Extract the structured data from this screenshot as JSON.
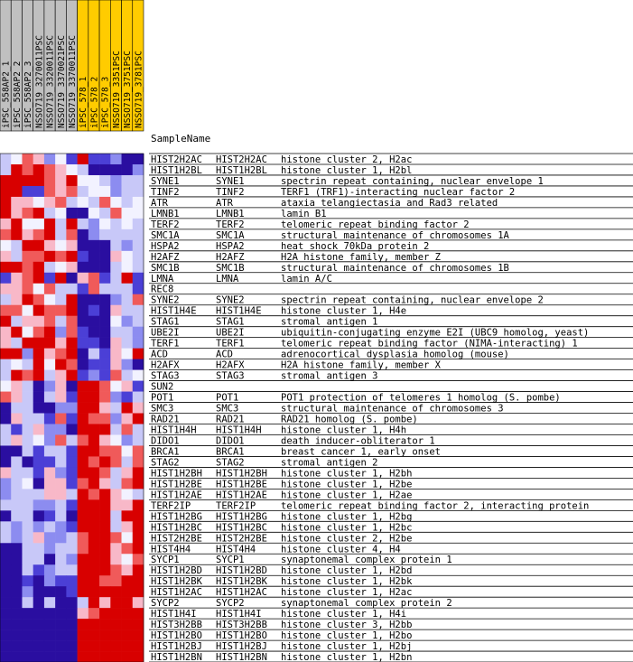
{
  "chart_data": {
    "type": "heatmap",
    "header_label": "SampleName",
    "columns": [
      {
        "name": "iPSC_558AP2_1",
        "group_color": "#c0c0c0"
      },
      {
        "name": "iPSC_558AP2_2",
        "group_color": "#c0c0c0"
      },
      {
        "name": "iPSC_558AP2_3",
        "group_color": "#c0c0c0"
      },
      {
        "name": "NSSO719_3270011PSC",
        "group_color": "#c0c0c0"
      },
      {
        "name": "NSSO719_3320011PSC",
        "group_color": "#c0c0c0"
      },
      {
        "name": "NSSO719_3370021PSC",
        "group_color": "#c0c0c0"
      },
      {
        "name": "NSSO719_3370011PSC",
        "group_color": "#c0c0c0"
      },
      {
        "name": "iPSC_578_1",
        "group_color": "#ffcc00"
      },
      {
        "name": "iPSC_578_2",
        "group_color": "#ffcc00"
      },
      {
        "name": "iPSC_578_3",
        "group_color": "#ffcc00"
      },
      {
        "name": "NSSO719_3351PSC",
        "group_color": "#ffcc00"
      },
      {
        "name": "NSSO719_3751PSC",
        "group_color": "#ffcc00"
      },
      {
        "name": "NSSO719_3781PSC",
        "group_color": "#ffcc00"
      }
    ],
    "rows": [
      {
        "symbol": "HIST2H2AC",
        "gene": "HIST2H2AC",
        "desc": "histone cluster 2, H2ac",
        "values": [
          -1,
          0,
          2,
          1,
          -2,
          0,
          -3,
          3,
          -3,
          -3,
          -2,
          -4,
          -4
        ]
      },
      {
        "symbol": "HIST1H2BL",
        "gene": "HIST1H2BL",
        "desc": "histone cluster 1, H2bl",
        "values": [
          -1,
          3,
          2,
          3,
          2,
          1,
          0,
          -1,
          -4,
          -4,
          -4,
          -4,
          -2
        ]
      },
      {
        "symbol": "SYNE1",
        "gene": "SYNE1",
        "desc": "spectrin repeat containing, nuclear envelope 1",
        "values": [
          3,
          3,
          3,
          3,
          2,
          1,
          3,
          0,
          0,
          -1,
          -2,
          -1,
          -1
        ]
      },
      {
        "symbol": "TINF2",
        "gene": "TINF2",
        "desc": "TERF1 (TRF1)-interacting nuclear factor 2",
        "values": [
          3,
          3,
          -3,
          -3,
          2,
          1,
          2,
          -1,
          0,
          0,
          -2,
          -1,
          -1
        ]
      },
      {
        "symbol": "ATR",
        "gene": "ATR",
        "desc": "ataxia telangiectasia and Rad3 related",
        "values": [
          3,
          1,
          1,
          0,
          1,
          2,
          -1,
          0,
          -1,
          2,
          0,
          -1,
          0
        ]
      },
      {
        "symbol": "LMNB1",
        "gene": "LMNB1",
        "desc": "lamin B1",
        "values": [
          3,
          1,
          2,
          3,
          -1,
          0,
          -4,
          -4,
          0,
          -1,
          2,
          0,
          0
        ]
      },
      {
        "symbol": "TERF2",
        "gene": "TERF2",
        "desc": "telomeric repeat binding factor 2",
        "values": [
          1,
          3,
          0,
          0,
          3,
          -1,
          3,
          -1,
          -2,
          0,
          -1,
          0,
          -1
        ]
      },
      {
        "symbol": "SMC1A",
        "gene": "SMC1A",
        "desc": "structural maintenance of chromosomes 1A",
        "values": [
          2,
          3,
          1,
          2,
          3,
          -1,
          2,
          -4,
          -2,
          -1,
          -1,
          -1,
          -1
        ]
      },
      {
        "symbol": "HSPA2",
        "gene": "HSPA2",
        "desc": "heat shock 70kDa protein 2",
        "values": [
          0,
          -1,
          3,
          3,
          1,
          0,
          1,
          -4,
          -4,
          -4,
          -1,
          -2,
          -1
        ]
      },
      {
        "symbol": "H2AFZ",
        "gene": "H2AFZ",
        "desc": "H2A histone family, member Z",
        "values": [
          1,
          -1,
          2,
          2,
          3,
          2,
          3,
          -3,
          -4,
          -4,
          1,
          0,
          -1
        ]
      },
      {
        "symbol": "SMC1B",
        "gene": "SMC1B",
        "desc": "structural maintenance of chromosomes 1B",
        "values": [
          3,
          3,
          2,
          3,
          -1,
          0,
          1,
          -4,
          -4,
          -4,
          -1,
          0,
          -1
        ]
      },
      {
        "symbol": "LMNA",
        "gene": "LMNA",
        "desc": "lamin A/C",
        "values": [
          -3,
          1,
          2,
          3,
          -3,
          3,
          -4,
          1,
          2,
          -3,
          -1,
          3,
          -3
        ]
      },
      {
        "symbol": "REC8",
        "gene": "",
        "desc": "",
        "values": [
          1,
          1,
          2,
          0,
          2,
          -1,
          -1,
          -3,
          2,
          -1,
          -1,
          -1,
          -3
        ]
      },
      {
        "symbol": "SYNE2",
        "gene": "SYNE2",
        "desc": "spectrin repeat containing, nuclear envelope 2",
        "values": [
          -1,
          1,
          3,
          2,
          0,
          -1,
          3,
          -4,
          -4,
          -4,
          -2,
          -1,
          2
        ]
      },
      {
        "symbol": "HIST1H4E",
        "gene": "HIST1H4E",
        "desc": "histone cluster 1, H4e",
        "values": [
          2,
          2,
          0,
          3,
          2,
          2,
          3,
          -4,
          -3,
          -4,
          1,
          -1,
          -1
        ]
      },
      {
        "symbol": "STAG1",
        "gene": "STAG1",
        "desc": "stromal antigen 1",
        "values": [
          3,
          -1,
          1,
          1,
          2,
          -1,
          2,
          -4,
          -4,
          -4,
          0,
          -2,
          -1
        ]
      },
      {
        "symbol": "UBE2I",
        "gene": "UBE2I",
        "desc": "ubiquitin-conjugating enzyme E2I (UBC9 homolog, yeast)",
        "values": [
          1,
          3,
          0,
          2,
          3,
          -2,
          2,
          -3,
          -4,
          -4,
          -1,
          -1,
          -2
        ]
      },
      {
        "symbol": "TERF1",
        "gene": "TERF1",
        "desc": "telomeric repeat binding factor (NIMA-interacting) 1",
        "values": [
          1,
          -1,
          3,
          3,
          3,
          1,
          3,
          -3,
          -3,
          -4,
          1,
          -1,
          -2
        ]
      },
      {
        "symbol": "ACD",
        "gene": "ACD",
        "desc": "adrenocortical dysplasia homolog (mouse)",
        "values": [
          3,
          3,
          -2,
          3,
          1,
          2,
          3,
          -4,
          -1,
          -3,
          1,
          0,
          3
        ]
      },
      {
        "symbol": "H2AFX",
        "gene": "H2AFX",
        "desc": "H2A histone family, member X",
        "values": [
          -1,
          0,
          -1,
          3,
          0,
          3,
          2,
          -4,
          -3,
          -3,
          1,
          -2,
          -4
        ]
      },
      {
        "symbol": "STAG3",
        "gene": "STAG3",
        "desc": "stromal antigen 3",
        "values": [
          -1,
          3,
          2,
          3,
          -1,
          1,
          3,
          -3,
          -2,
          -3,
          2,
          -1,
          0
        ]
      },
      {
        "symbol": "SUN2",
        "gene": "",
        "desc": "",
        "values": [
          0,
          1,
          -1,
          -4,
          -2,
          1,
          -4,
          3,
          3,
          2,
          0,
          1,
          -3
        ]
      },
      {
        "symbol": "POT1",
        "gene": "POT1",
        "desc": "POT1 protection of telomeres 1 homolog (S. pombe)",
        "values": [
          2,
          1,
          -1,
          -4,
          -1,
          1,
          -3,
          3,
          3,
          2,
          -2,
          -3,
          -1
        ]
      },
      {
        "symbol": "SMC3",
        "gene": "SMC3",
        "desc": "structural maintenance of chromosomes 3",
        "values": [
          -4,
          -1,
          -1,
          -4,
          -4,
          -2,
          -2,
          3,
          3,
          1,
          -1,
          3,
          1
        ]
      },
      {
        "symbol": "RAD21",
        "gene": "RAD21",
        "desc": "RAD21 homolog (S. pombe)",
        "values": [
          -4,
          1,
          -1,
          -1,
          -3,
          2,
          -3,
          3,
          2,
          2,
          -2,
          1,
          3
        ]
      },
      {
        "symbol": "HIST1H4H",
        "gene": "HIST1H4H",
        "desc": "histone cluster 1, H4h",
        "values": [
          -1,
          -3,
          -1,
          1,
          -2,
          -2,
          -4,
          3,
          3,
          3,
          -1,
          2,
          -1
        ]
      },
      {
        "symbol": "DIDO1",
        "gene": "DIDO1",
        "desc": "death inducer-obliterator 1",
        "values": [
          -1,
          1,
          -1,
          0,
          -2,
          2,
          -1,
          2,
          3,
          1,
          0,
          -2,
          -1
        ]
      },
      {
        "symbol": "BRCA1",
        "gene": "BRCA1",
        "desc": "breast cancer 1, early onset",
        "values": [
          -4,
          -4,
          -1,
          -3,
          -1,
          -1,
          -3,
          3,
          3,
          2,
          2,
          0,
          2
        ]
      },
      {
        "symbol": "STAG2",
        "gene": "STAG2",
        "desc": "stromal antigen 2",
        "values": [
          -4,
          -1,
          -4,
          -3,
          -3,
          -1,
          -3,
          3,
          2,
          3,
          2,
          -1,
          2
        ]
      },
      {
        "symbol": "HIST1H2BH",
        "gene": "HIST1H2BH",
        "desc": "histone cluster 1, H2bh",
        "values": [
          1,
          -1,
          -1,
          -3,
          1,
          -2,
          -3,
          3,
          3,
          2,
          -1,
          1,
          3
        ]
      },
      {
        "symbol": "HIST1H2BE",
        "gene": "HIST1H2BE",
        "desc": "histone cluster 1, H2be",
        "values": [
          -2,
          -1,
          0,
          -4,
          1,
          1,
          -3,
          2,
          3,
          1,
          -1,
          2,
          3
        ]
      },
      {
        "symbol": "HIST1H2AE",
        "gene": "HIST1H2AE",
        "desc": "histone cluster 1, H2ae",
        "values": [
          -2,
          -1,
          -1,
          -1,
          1,
          1,
          -1,
          3,
          2,
          3,
          1,
          0,
          -1
        ]
      },
      {
        "symbol": "TERF2IP",
        "gene": "TERF2IP",
        "desc": "telomeric repeat binding factor 2, interacting protein",
        "values": [
          -1,
          -1,
          -1,
          -2,
          -2,
          -1,
          -3,
          3,
          3,
          3,
          1,
          1,
          3
        ]
      },
      {
        "symbol": "HIST1H2BG",
        "gene": "HIST1H2BG",
        "desc": "histone cluster 1, H2bg",
        "values": [
          -4,
          -1,
          -1,
          -4,
          -3,
          -1,
          -4,
          3,
          3,
          3,
          -1,
          3,
          3
        ]
      },
      {
        "symbol": "HIST1H2BC",
        "gene": "HIST1H2BC",
        "desc": "histone cluster 1, H2bc",
        "values": [
          -1,
          -2,
          -1,
          -2,
          -1,
          -2,
          -3,
          3,
          3,
          3,
          -1,
          1,
          3
        ]
      },
      {
        "symbol": "HIST2H2BE",
        "gene": "HIST2H2BE",
        "desc": "histone cluster 2, H2be",
        "values": [
          -1,
          -2,
          -1,
          1,
          -2,
          -2,
          -1,
          2,
          3,
          3,
          2,
          0,
          3
        ]
      },
      {
        "symbol": "HIST4H4",
        "gene": "HIST4H4",
        "desc": "histone cluster 4, H4",
        "values": [
          -4,
          -4,
          -1,
          -1,
          -2,
          -1,
          -1,
          2,
          3,
          3,
          1,
          2,
          3
        ]
      },
      {
        "symbol": "SYCP1",
        "gene": "SYCP1",
        "desc": "synaptonemal complex protein 1",
        "values": [
          -4,
          -4,
          -1,
          -1,
          -4,
          -1,
          -2,
          3,
          3,
          3,
          1,
          0,
          2
        ]
      },
      {
        "symbol": "HIST1H2BD",
        "gene": "HIST1H2BD",
        "desc": "histone cluster 1, H2bd",
        "values": [
          -4,
          -4,
          -1,
          -3,
          -2,
          -1,
          -1,
          3,
          3,
          3,
          2,
          1,
          3
        ]
      },
      {
        "symbol": "HIST1H2BK",
        "gene": "HIST1H2BK",
        "desc": "histone cluster 1, H2bk",
        "values": [
          -4,
          -4,
          -3,
          -4,
          -2,
          -3,
          -3,
          3,
          3,
          2,
          2,
          3,
          3
        ]
      },
      {
        "symbol": "HIST1H2AC",
        "gene": "HIST1H2AC",
        "desc": "histone cluster 1, H2ac",
        "values": [
          -4,
          -4,
          -2,
          -4,
          -4,
          -4,
          -3,
          3,
          3,
          3,
          3,
          3,
          3
        ]
      },
      {
        "symbol": "SYCP2",
        "gene": "SYCP2",
        "desc": "synaptonemal complex protein 2",
        "values": [
          -4,
          -4,
          -1,
          -4,
          -1,
          -4,
          -4,
          -1,
          3,
          1,
          3,
          3,
          1
        ]
      },
      {
        "symbol": "HIST1H4I",
        "gene": "HIST1H4I",
        "desc": "histone cluster 1, H4i",
        "values": [
          -4,
          -4,
          -4,
          -4,
          -4,
          -4,
          -4,
          1,
          2,
          3,
          3,
          3,
          3
        ]
      },
      {
        "symbol": "HIST3H2BB",
        "gene": "HIST3H2BB",
        "desc": "histone cluster 3, H2bb",
        "values": [
          -4,
          -4,
          -4,
          -4,
          -4,
          -4,
          -4,
          3,
          3,
          3,
          3,
          3,
          3
        ]
      },
      {
        "symbol": "HIST1H2BO",
        "gene": "HIST1H2BO",
        "desc": "histone cluster 1, H2bo",
        "values": [
          -4,
          -4,
          -4,
          -4,
          -4,
          -4,
          -4,
          3,
          3,
          3,
          3,
          3,
          3
        ]
      },
      {
        "symbol": "HIST1H2BJ",
        "gene": "HIST1H2BJ",
        "desc": "histone cluster 1, H2bj",
        "values": [
          -4,
          -4,
          -4,
          -4,
          -4,
          -4,
          -4,
          3,
          3,
          3,
          3,
          3,
          3
        ]
      },
      {
        "symbol": "HIST1H2BN",
        "gene": "HIST1H2BN",
        "desc": "histone cluster 1, H2bn",
        "values": [
          -4,
          -4,
          -4,
          -4,
          -4,
          -4,
          -4,
          3,
          3,
          3,
          3,
          3,
          3
        ]
      }
    ],
    "value_range": [
      -4,
      3
    ],
    "colors": {
      "-4": "#2a0ea0",
      "-3": "#4b3fd6",
      "-2": "#8c8cf0",
      "-1": "#c8c8f8",
      "0": "#f2f2ff",
      "1": "#f8b8c8",
      "2": "#f05a5a",
      "3": "#d80000"
    },
    "header_band_color": "#c0c0c0",
    "grid": true
  }
}
